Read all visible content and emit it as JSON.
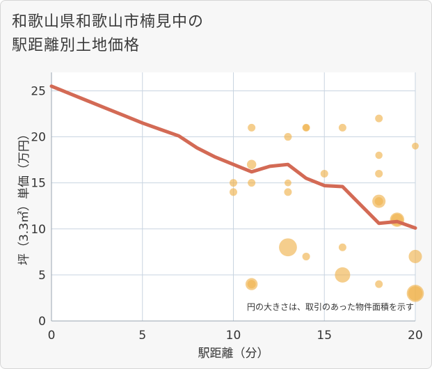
{
  "header": {
    "title_line1": "和歌山県和歌山市楠見中の",
    "title_line2": "駅距離別土地価格"
  },
  "chart_data": {
    "type": "scatter",
    "xlabel": "駅距離（分）",
    "ylabel": "坪（3.3㎡）単価（万円）",
    "xlim": [
      0,
      20
    ],
    "ylim": [
      0,
      27
    ],
    "x_ticks": [
      0,
      5,
      10,
      15,
      20
    ],
    "y_ticks": [
      0,
      5,
      10,
      15,
      20,
      25
    ],
    "grid": true,
    "annotation": "円の大きさは、取引のあった物件面積を示す",
    "colors": {
      "bubble": "#f0b450",
      "line": "#d36a55",
      "grid": "#c8d4e0",
      "plot_bg": "#ffffff"
    },
    "points": [
      {
        "x": 11,
        "y": 21,
        "size": 1
      },
      {
        "x": 11,
        "y": 17,
        "size": 1.5
      },
      {
        "x": 11,
        "y": 15,
        "size": 1
      },
      {
        "x": 11,
        "y": 4,
        "size": 2.5
      },
      {
        "x": 11,
        "y": 4,
        "size": 1.2
      },
      {
        "x": 10,
        "y": 15,
        "size": 1
      },
      {
        "x": 10,
        "y": 14,
        "size": 1
      },
      {
        "x": 13,
        "y": 20,
        "size": 1
      },
      {
        "x": 13,
        "y": 15,
        "size": 0.8
      },
      {
        "x": 13,
        "y": 14,
        "size": 1
      },
      {
        "x": 13,
        "y": 8,
        "size": 5.5
      },
      {
        "x": 14,
        "y": 21,
        "size": 1
      },
      {
        "x": 14,
        "y": 21,
        "size": 0.8
      },
      {
        "x": 14,
        "y": 7,
        "size": 1
      },
      {
        "x": 15,
        "y": 16,
        "size": 1
      },
      {
        "x": 16,
        "y": 21,
        "size": 1
      },
      {
        "x": 16,
        "y": 8,
        "size": 1
      },
      {
        "x": 16,
        "y": 5,
        "size": 4
      },
      {
        "x": 18,
        "y": 22,
        "size": 1
      },
      {
        "x": 18,
        "y": 18,
        "size": 0.9
      },
      {
        "x": 18,
        "y": 16,
        "size": 1
      },
      {
        "x": 18,
        "y": 13,
        "size": 3
      },
      {
        "x": 18,
        "y": 13,
        "size": 1.2
      },
      {
        "x": 18,
        "y": 4,
        "size": 1
      },
      {
        "x": 19,
        "y": 11,
        "size": 3.5
      },
      {
        "x": 19,
        "y": 11,
        "size": 2.5
      },
      {
        "x": 20,
        "y": 19,
        "size": 0.8
      },
      {
        "x": 20,
        "y": 7,
        "size": 3
      },
      {
        "x": 20,
        "y": 3,
        "size": 5
      },
      {
        "x": 20,
        "y": 3,
        "size": 3.5
      }
    ],
    "trend_line": {
      "x": [
        0,
        1,
        2,
        3,
        4,
        5,
        6,
        7,
        8,
        9,
        10,
        11,
        12,
        13,
        14,
        15,
        16,
        17,
        18,
        19,
        20
      ],
      "y": [
        25.5,
        24.7,
        23.9,
        23.1,
        22.3,
        21.5,
        20.8,
        20.1,
        18.8,
        17.8,
        17,
        16.2,
        16.8,
        17,
        15.5,
        14.7,
        14.6,
        12.6,
        10.6,
        10.8,
        10.1
      ]
    }
  }
}
